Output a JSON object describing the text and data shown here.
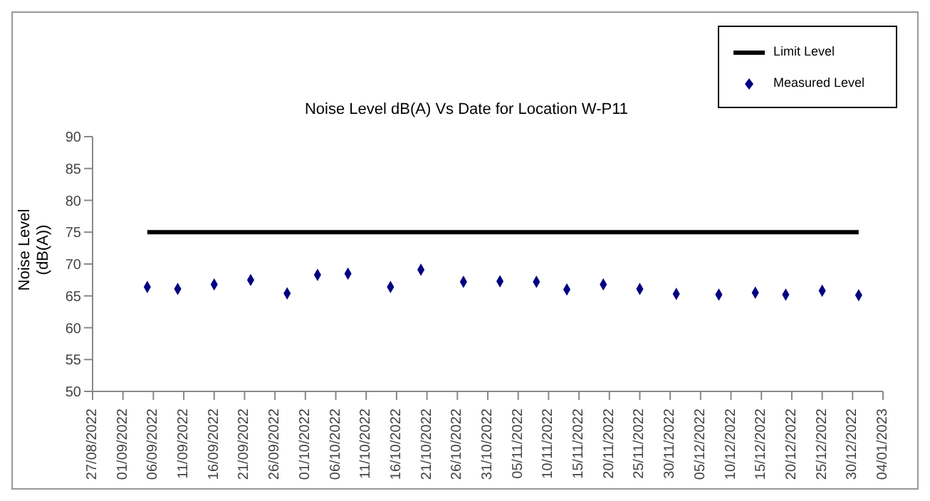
{
  "chart_data": {
    "type": "scatter",
    "title": "Noise Level dB(A) Vs Date for Location W-P11",
    "ylabel": "Noise Level\n(dB(A))",
    "series": [
      {
        "name": "Limit Level",
        "type": "line",
        "marker": "none",
        "color": "#000000",
        "x": [
          "2022-09-05",
          "2022-12-31"
        ],
        "values": [
          75,
          75
        ]
      },
      {
        "name": "Measured Level",
        "marker": "diamond",
        "color": "#000080",
        "x": [
          "2022-09-05",
          "2022-09-10",
          "2022-09-16",
          "2022-09-22",
          "2022-09-28",
          "2022-10-03",
          "2022-10-08",
          "2022-10-15",
          "2022-10-20",
          "2022-10-27",
          "2022-11-02",
          "2022-11-08",
          "2022-11-13",
          "2022-11-19",
          "2022-11-25",
          "2022-12-01",
          "2022-12-08",
          "2022-12-14",
          "2022-12-19",
          "2022-12-25",
          "2022-12-31"
        ],
        "values": [
          66.4,
          66.1,
          66.8,
          67.5,
          65.4,
          68.3,
          68.5,
          66.4,
          69.1,
          67.2,
          67.3,
          67.2,
          66.0,
          66.8,
          66.1,
          65.3,
          65.2,
          65.5,
          65.2,
          65.8,
          65.1
        ]
      }
    ],
    "xlim": [
      "2022-08-27",
      "2023-01-04"
    ],
    "xticks": [
      {
        "value": "2022-08-27",
        "label": "27/08/2022"
      },
      {
        "value": "2022-09-01",
        "label": "01/09/2022"
      },
      {
        "value": "2022-09-06",
        "label": "06/09/2022"
      },
      {
        "value": "2022-09-11",
        "label": "11/09/2022"
      },
      {
        "value": "2022-09-16",
        "label": "16/09/2022"
      },
      {
        "value": "2022-09-21",
        "label": "21/09/2022"
      },
      {
        "value": "2022-09-26",
        "label": "26/09/2022"
      },
      {
        "value": "2022-10-01",
        "label": "01/10/2022"
      },
      {
        "value": "2022-10-06",
        "label": "06/10/2022"
      },
      {
        "value": "2022-10-11",
        "label": "11/10/2022"
      },
      {
        "value": "2022-10-16",
        "label": "16/10/2022"
      },
      {
        "value": "2022-10-21",
        "label": "21/10/2022"
      },
      {
        "value": "2022-10-26",
        "label": "26/10/2022"
      },
      {
        "value": "2022-10-31",
        "label": "31/10/2022"
      },
      {
        "value": "2022-11-05",
        "label": "05/11/2022"
      },
      {
        "value": "2022-11-10",
        "label": "10/11/2022"
      },
      {
        "value": "2022-11-15",
        "label": "15/11/2022"
      },
      {
        "value": "2022-11-20",
        "label": "20/11/2022"
      },
      {
        "value": "2022-11-25",
        "label": "25/11/2022"
      },
      {
        "value": "2022-11-30",
        "label": "30/11/2022"
      },
      {
        "value": "2022-12-05",
        "label": "05/12/2022"
      },
      {
        "value": "2022-12-10",
        "label": "10/12/2022"
      },
      {
        "value": "2022-12-15",
        "label": "15/12/2022"
      },
      {
        "value": "2022-12-20",
        "label": "20/12/2022"
      },
      {
        "value": "2022-12-25",
        "label": "25/12/2022"
      },
      {
        "value": "2022-12-30",
        "label": "30/12/2022"
      },
      {
        "value": "2023-01-04",
        "label": "04/01/2023"
      }
    ],
    "ylim": [
      50,
      90
    ],
    "yticks": [
      50,
      55,
      60,
      65,
      70,
      75,
      80,
      85,
      90
    ],
    "grid": false,
    "legend": "top right",
    "line_style": "solid"
  }
}
